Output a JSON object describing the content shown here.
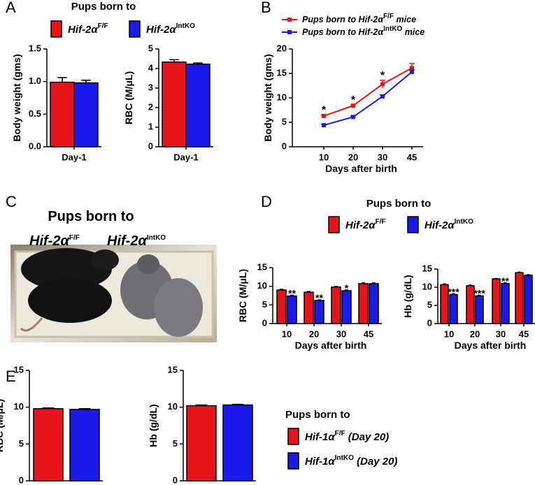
{
  "panel_labels": [
    "A",
    "B",
    "C",
    "D",
    "E"
  ],
  "photo": {
    "title": "Pups born to",
    "labels": [
      {
        "name": "Hif-2α",
        "sup": "F/F"
      },
      {
        "name": "Hif-2α",
        "sup": "IntKO"
      }
    ]
  },
  "chart_data": [
    {
      "type": "bar",
      "legend_title": "Pups born to",
      "categories": [
        "Day-1"
      ],
      "ylabel": "Body weight (gms)",
      "ylim": [
        0,
        1.5
      ],
      "yticks": [
        {
          "value": 0,
          "label": "0.0"
        },
        0.5,
        {
          "value": 1,
          "label": "1.0"
        },
        1.5
      ],
      "series": [
        {
          "name": "Hif-2α",
          "name_sup": "F/F",
          "color": "#e8141b",
          "values": [
            0.99
          ],
          "errors": [
            0.07
          ]
        },
        {
          "name": "Hif-2α",
          "name_sup": "IntKO",
          "color": "#1a1aea",
          "values": [
            0.98
          ],
          "errors": [
            0.04
          ]
        }
      ]
    },
    {
      "type": "bar",
      "categories": [
        "Day-1"
      ],
      "ylabel": "RBC (M/μL)",
      "ylim": [
        0,
        5
      ],
      "yticks": [
        0,
        1,
        2,
        3,
        4,
        5
      ],
      "series": [
        {
          "color": "#e8141b",
          "values": [
            4.33
          ],
          "errors": [
            0.12
          ]
        },
        {
          "color": "#1a1aea",
          "values": [
            4.22
          ],
          "errors": [
            0.06
          ]
        }
      ]
    },
    {
      "type": "line",
      "categories": [
        "10",
        "20",
        "30",
        "45"
      ],
      "xlabel": "Days after birth",
      "ylabel": "Body weight (gms)",
      "ylim": [
        0,
        20
      ],
      "yticks": [
        0,
        5,
        10,
        15,
        20
      ],
      "annotations": [
        "*",
        "*",
        "*",
        null
      ],
      "series": [
        {
          "name": "Pups born to Hif-2α",
          "name_sup": "F/F",
          "name_suffix": " mice",
          "color": "#e8141b",
          "values": [
            6.3,
            8.4,
            12.8,
            16.1
          ],
          "errors": [
            0.2,
            0.2,
            0.8,
            0.9
          ]
        },
        {
          "name": "Pups born to Hif-2α",
          "name_sup": "IntKO",
          "name_suffix": " mice",
          "color": "#1a1aea",
          "values": [
            4.4,
            6.1,
            10.3,
            15.3
          ],
          "errors": [
            0.2,
            0.2,
            0.3,
            0.4
          ]
        }
      ]
    },
    {
      "type": "bar",
      "legend_title": "Pups born to",
      "categories": [
        "10",
        "20",
        "30",
        "45"
      ],
      "xlabel": "Days after birth",
      "ylabel": "RBC (M/μL)",
      "ylim": [
        0,
        15
      ],
      "yticks": [
        0,
        5,
        10,
        15
      ],
      "annotations": [
        "**",
        "**",
        "*",
        null
      ],
      "series": [
        {
          "name": "Hif-2α",
          "name_sup": "F/F",
          "color": "#e8141b",
          "values": [
            9.0,
            8.4,
            9.8,
            10.7
          ],
          "errors": [
            0.2,
            0.2,
            0.15,
            0.2
          ]
        },
        {
          "name": "Hif-2α",
          "name_sup": "IntKO",
          "color": "#1a1aea",
          "values": [
            7.4,
            6.2,
            8.8,
            10.7
          ],
          "errors": [
            0.2,
            0.15,
            0.2,
            0.2
          ]
        }
      ]
    },
    {
      "type": "bar",
      "categories": [
        "10",
        "20",
        "30",
        "45"
      ],
      "xlabel": "Days after birth",
      "ylabel": "Hb (g/dL)",
      "ylim": [
        0,
        15
      ],
      "yticks": [
        0,
        5,
        10,
        15
      ],
      "annotations": [
        "***",
        "***",
        "**",
        null
      ],
      "series": [
        {
          "color": "#e8141b",
          "values": [
            10.7,
            10.4,
            12.3,
            14.0
          ],
          "errors": [
            0.2,
            0.2,
            0.1,
            0.15
          ]
        },
        {
          "color": "#1a1aea",
          "values": [
            8.0,
            7.6,
            11.0,
            13.3
          ],
          "errors": [
            0.2,
            0.2,
            0.2,
            0.15
          ]
        }
      ]
    },
    {
      "type": "bar",
      "legend_title": "Pups born to",
      "ylabel": "RBC (M/μL)",
      "ylim": [
        0,
        15
      ],
      "yticks": [
        0,
        5,
        10,
        15
      ],
      "series": [
        {
          "name": "Hif-1α",
          "name_sup": "F/F",
          "name_suffix": " (Day 20)",
          "color": "#e8141b",
          "values": [
            9.8
          ],
          "errors": [
            0.1
          ]
        },
        {
          "name": "Hif-1α",
          "name_sup": "IntKO",
          "name_suffix": " (Day 20)",
          "color": "#1a1aea",
          "values": [
            9.7
          ],
          "errors": [
            0.1
          ]
        }
      ]
    },
    {
      "type": "bar",
      "ylabel": "Hb (g/dL)",
      "ylim": [
        0,
        15
      ],
      "yticks": [
        0,
        5,
        10,
        15
      ],
      "series": [
        {
          "color": "#e8141b",
          "values": [
            10.2
          ],
          "errors": [
            0.1
          ]
        },
        {
          "color": "#1a1aea",
          "values": [
            10.3
          ],
          "errors": [
            0.1
          ]
        }
      ]
    }
  ]
}
